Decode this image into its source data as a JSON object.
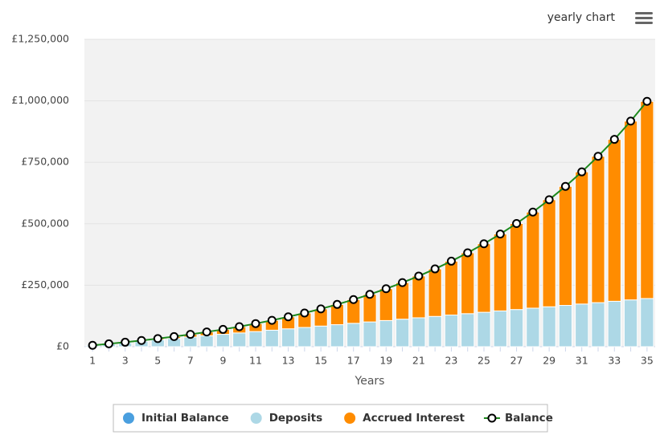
{
  "menu_title": "yearly chart",
  "chart_data": {
    "type": "bar",
    "stacked": true,
    "x_label": "Years",
    "categories": [
      "1",
      null,
      "3",
      null,
      "5",
      null,
      "7",
      null,
      "9",
      null,
      "11",
      null,
      "13",
      null,
      "15",
      null,
      "17",
      null,
      "19",
      null,
      "21",
      null,
      "23",
      null,
      "25",
      null,
      "27",
      null,
      "29",
      null,
      "31",
      null,
      "33",
      null,
      "35"
    ],
    "ylim": [
      0,
      1250000
    ],
    "yticks": [
      {
        "value": 0,
        "label": "£0"
      },
      {
        "value": 250000,
        "label": "£250,000"
      },
      {
        "value": 500000,
        "label": "£500,000"
      },
      {
        "value": 750000,
        "label": "£750,000"
      },
      {
        "value": 1000000,
        "label": "£1,000,000"
      },
      {
        "value": 1250000,
        "label": "£1,250,000"
      }
    ],
    "grid": true,
    "series": [
      {
        "name": "Initial Balance",
        "type": "bar",
        "color": "#4a9fdf",
        "values": [
          0,
          0,
          0,
          0,
          0,
          0,
          0,
          0,
          0,
          0,
          0,
          0,
          0,
          0,
          0,
          0,
          0,
          0,
          0,
          0,
          0,
          0,
          0,
          0,
          0,
          0,
          0,
          0,
          0,
          0,
          0,
          0,
          0,
          0,
          0
        ]
      },
      {
        "name": "Deposits",
        "type": "bar",
        "color": "#add8e6",
        "values": [
          5600,
          11200,
          16800,
          22400,
          28000,
          33600,
          39200,
          44800,
          50400,
          56000,
          61600,
          67200,
          72800,
          78400,
          84000,
          89600,
          95200,
          100800,
          106400,
          112000,
          117600,
          123200,
          128800,
          134400,
          140000,
          145600,
          151200,
          156800,
          162400,
          168000,
          173600,
          179200,
          184800,
          190400,
          196000
        ]
      },
      {
        "name": "Accrued Interest",
        "type": "bar",
        "color": "#ff8c00",
        "values": [
          0,
          500,
          1400,
          2900,
          5000,
          7600,
          11000,
          15100,
          20000,
          25700,
          32400,
          40000,
          48800,
          58700,
          69800,
          82400,
          96400,
          112000,
          129400,
          148600,
          169800,
          193200,
          219000,
          247400,
          278500,
          312600,
          349900,
          390800,
          435400,
          484100,
          537300,
          595200,
          658300,
          727000,
          801800
        ]
      },
      {
        "name": "Balance",
        "type": "line",
        "color": "#1e8a1e",
        "values": [
          5600,
          11700,
          18200,
          25300,
          33000,
          41200,
          50200,
          59900,
          70400,
          81700,
          94000,
          107200,
          121600,
          137100,
          153800,
          172000,
          191600,
          212800,
          235800,
          260600,
          287400,
          316400,
          347800,
          381800,
          418500,
          458200,
          501100,
          547600,
          597800,
          652100,
          710900,
          774400,
          843100,
          917400,
          997800
        ]
      }
    ]
  }
}
